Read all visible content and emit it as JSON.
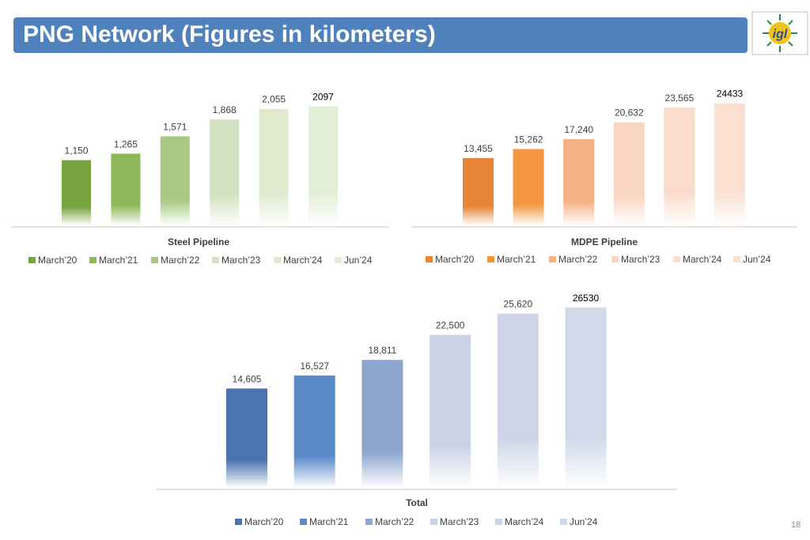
{
  "title": "PNG Network (Figures in kilometers)",
  "page_number": "18",
  "logo": {
    "text": "igl"
  },
  "chart_data": [
    {
      "type": "bar",
      "title": "Steel Pipeline",
      "categories": [
        "March’20",
        "March’21",
        "March’22",
        "March’23",
        "March’24",
        "Jun’24"
      ],
      "values": [
        1150,
        1265,
        1571,
        1868,
        2055,
        2097
      ],
      "labels": [
        "1,150",
        "1,265",
        "1,571",
        "1,868",
        "2,055",
        "2097"
      ],
      "colors": [
        "#78a440",
        "#8db95b",
        "#a9c984",
        "#d3e3c1",
        "#dfeacf",
        "#e3eed6"
      ],
      "ylim": [
        0,
        2400
      ]
    },
    {
      "type": "bar",
      "title": "MDPE Pipeline",
      "categories": [
        "March’20",
        "March’21",
        "March’22",
        "March’23",
        "March’24",
        "Jun’24"
      ],
      "values": [
        13455,
        15262,
        17240,
        20632,
        23565,
        24433
      ],
      "labels": [
        "13,455",
        "15,262",
        "17,240",
        "20,632",
        "23,565",
        "24433"
      ],
      "colors": [
        "#e8853a",
        "#f3963f",
        "#f6b183",
        "#f9d5c2",
        "#fbdccb",
        "#fbe0d2"
      ],
      "ylim": [
        0,
        28000
      ]
    },
    {
      "type": "bar",
      "title": "Total",
      "categories": [
        "March’20",
        "March’21",
        "March’22",
        "March’23",
        "March’24",
        "Jun’24"
      ],
      "values": [
        14605,
        16527,
        18811,
        22500,
        25620,
        26530
      ],
      "labels": [
        "14,605",
        "16,527",
        "18,811",
        "22,500",
        "25,620",
        "26530"
      ],
      "colors": [
        "#4a73b0",
        "#5b8ac8",
        "#8da6ce",
        "#c9d3e5",
        "#cdd6e8",
        "#d1daea"
      ],
      "ylim": [
        0,
        30000
      ]
    }
  ]
}
